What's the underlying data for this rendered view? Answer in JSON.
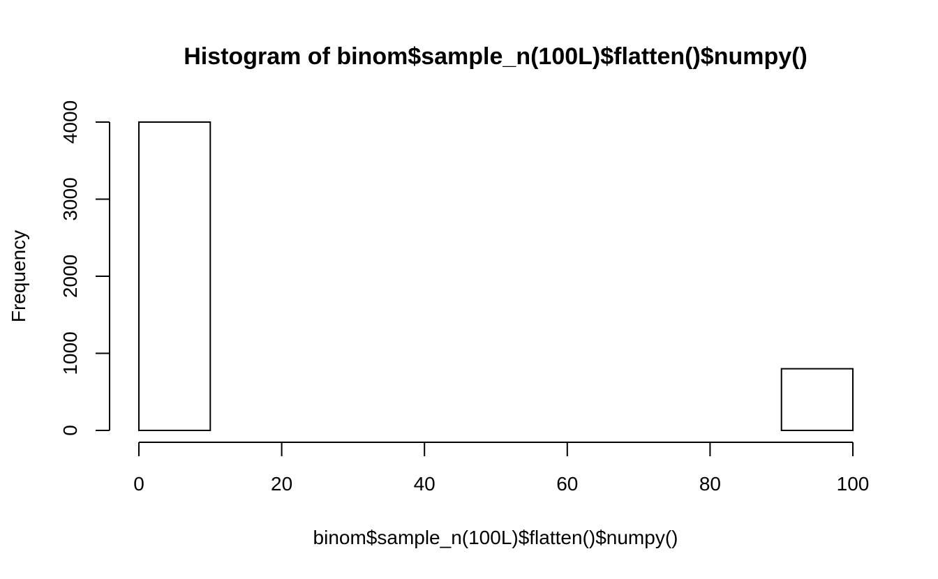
{
  "chart_data": {
    "type": "bar",
    "title": "Histogram of binom$sample_n(100L)$flatten()$numpy()",
    "xlabel": "binom$sample_n(100L)$flatten()$numpy()",
    "ylabel": "Frequency",
    "bins": [
      {
        "from": 0,
        "to": 10,
        "count": 4000
      },
      {
        "from": 10,
        "to": 20,
        "count": 0
      },
      {
        "from": 20,
        "to": 30,
        "count": 0
      },
      {
        "from": 30,
        "to": 40,
        "count": 0
      },
      {
        "from": 40,
        "to": 50,
        "count": 0
      },
      {
        "from": 50,
        "to": 60,
        "count": 0
      },
      {
        "from": 60,
        "to": 70,
        "count": 0
      },
      {
        "from": 70,
        "to": 80,
        "count": 0
      },
      {
        "from": 80,
        "to": 90,
        "count": 0
      },
      {
        "from": 90,
        "to": 100,
        "count": 800
      }
    ],
    "xlim": [
      0,
      100
    ],
    "ylim": [
      0,
      4000
    ],
    "x_ticks": [
      0,
      20,
      40,
      60,
      80,
      100
    ],
    "x_tick_labels": [
      "0",
      "20",
      "40",
      "60",
      "80",
      "100"
    ],
    "y_ticks": [
      0,
      1000,
      2000,
      3000,
      4000
    ],
    "y_tick_labels": [
      "0",
      "1000",
      "2000",
      "3000",
      "4000"
    ],
    "grid": false,
    "legend": "none",
    "colors": {
      "bar_fill": "#ffffff",
      "bar_edge": "#000000"
    }
  }
}
